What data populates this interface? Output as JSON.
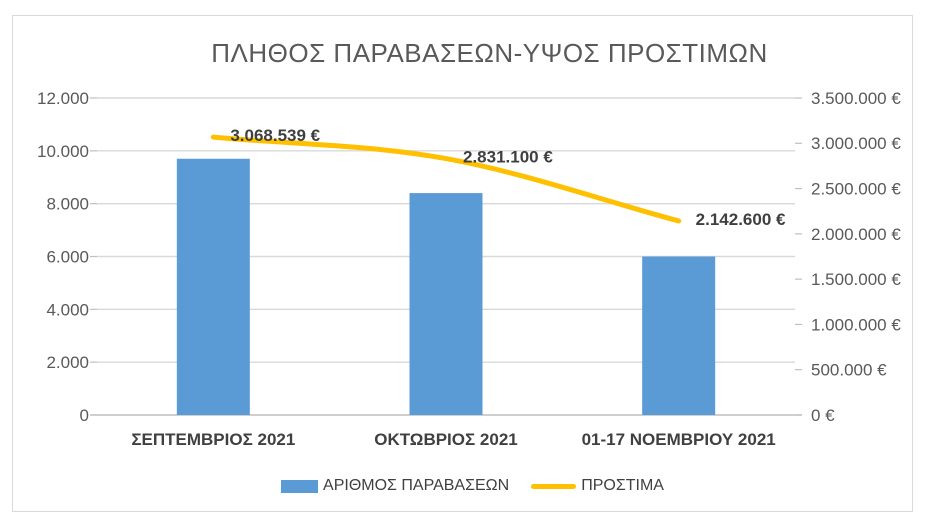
{
  "title": "ΠΛΗΘΟΣ ΠΑΡΑΒΑΣΕΩΝ-ΥΨΟΣ ΠΡΟΣΤΙΜΩΝ",
  "colors": {
    "bar": "#5B9BD5",
    "line": "#FFC000",
    "gridline": "#D9D9D9",
    "axis": "#BFBFBF",
    "tick_label": "#595959",
    "title_text": "#595959",
    "category_label": "#404040",
    "data_label": "#3F3F3F",
    "legend_text": "#404040",
    "chart_border": "#D9D9D9"
  },
  "chart_data": {
    "type": "bar",
    "subtype": "combo bar+line, dual axis",
    "title": "ΠΛΗΘΟΣ ΠΑΡΑΒΑΣΕΩΝ-ΥΨΟΣ ΠΡΟΣΤΙΜΩΝ",
    "categories": [
      "ΣΕΠΤΕΜΒΡΙΟΣ 2021",
      "ΟΚΤΩΒΡΙΟΣ 2021",
      "01-17 ΝΟΕΜΒΡΙΟΥ 2021"
    ],
    "series": [
      {
        "name": "ΑΡΙΘΜΟΣ ΠΑΡΑΒΑΣΕΩΝ",
        "type": "bar",
        "axis": "left",
        "values": [
          9700,
          8400,
          6000
        ]
      },
      {
        "name": "ΠΡΟΣΤΙΜΑ",
        "type": "line",
        "axis": "right",
        "values": [
          3068539,
          2831100,
          2142600
        ],
        "data_labels": [
          "3.068.539 €",
          "2.831.100 €",
          "2.142.600 €"
        ]
      }
    ],
    "left_axis": {
      "min": 0,
      "max": 12000,
      "step": 2000,
      "tick_labels": [
        "0",
        "2.000",
        "4.000",
        "6.000",
        "8.000",
        "10.000",
        "12.000"
      ]
    },
    "right_axis": {
      "min": 0,
      "max": 3500000,
      "step": 500000,
      "tick_labels": [
        "0 €",
        "500.000 €",
        "1.000.000 €",
        "1.500.000 €",
        "2.000.000 €",
        "2.500.000 €",
        "3.000.000 €",
        "3.500.000 €"
      ]
    },
    "grid": "horizontal major gridlines (left axis)",
    "legend_position": "bottom"
  },
  "legend": [
    {
      "label": "ΑΡΙΘΜΟΣ ΠΑΡΑΒΑΣΕΩΝ"
    },
    {
      "label": "ΠΡΟΣΤΙΜΑ"
    }
  ]
}
